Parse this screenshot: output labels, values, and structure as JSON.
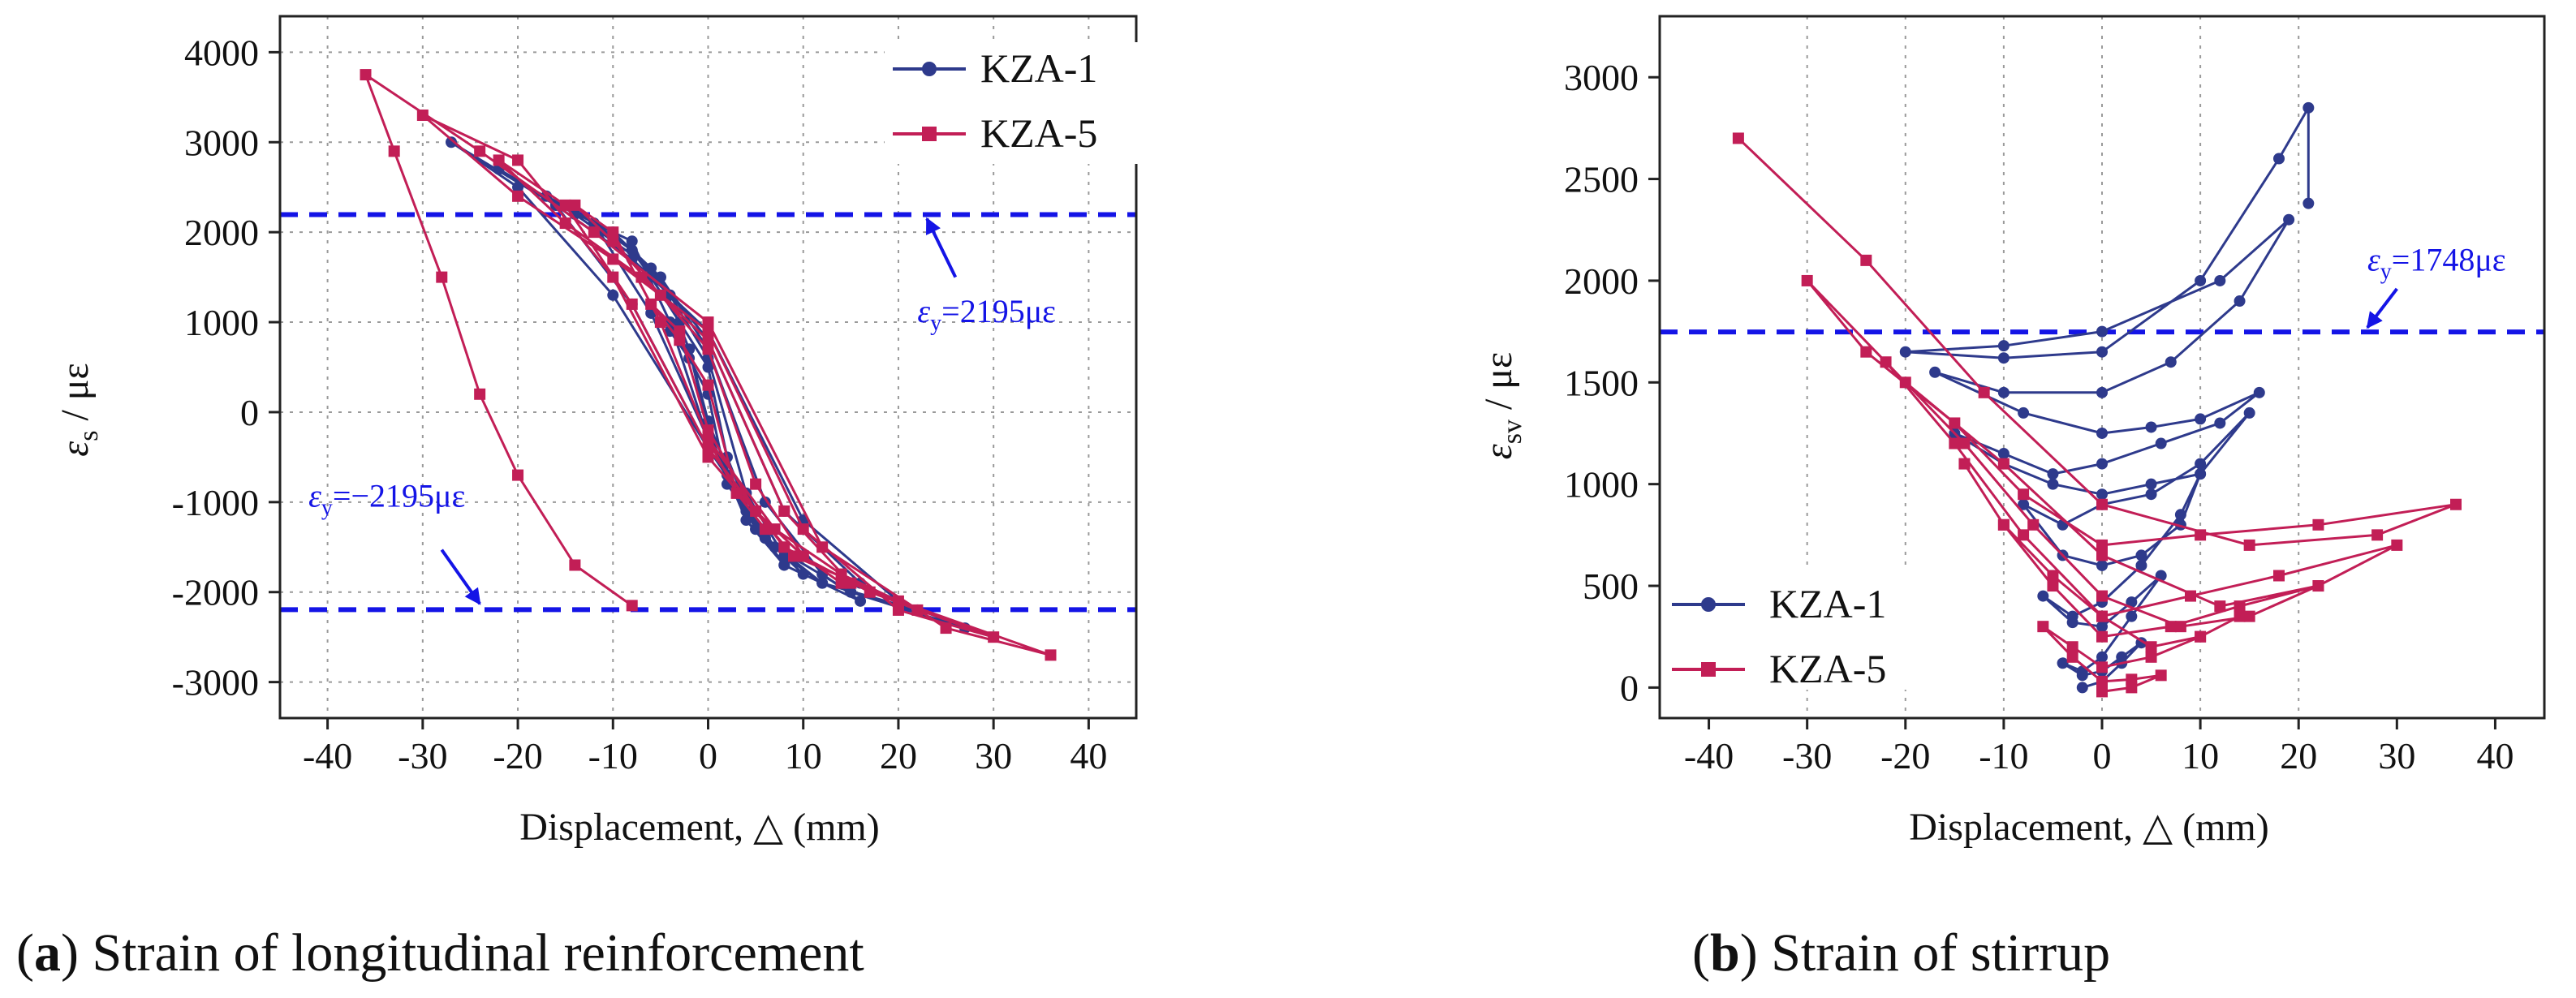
{
  "colors": {
    "kza1": "#2e3a8c",
    "kza5": "#c21e56",
    "ref": "#1414e6",
    "grid": "#9a9a9a"
  },
  "chart_data": [
    {
      "id": "a",
      "type": "line",
      "caption": {
        "letter": "a",
        "text": "Strain of longitudinal reinforcement"
      },
      "xlabel": "Displacement, △ (mm)",
      "ylabel_main": "ε",
      "ylabel_sub": "s",
      "ylabel_unit": " / με",
      "xlim": [
        -45,
        45
      ],
      "ylim": [
        -3400,
        4400
      ],
      "xticks": [
        -40,
        -30,
        -20,
        -10,
        0,
        10,
        20,
        30,
        40
      ],
      "yticks": [
        -3000,
        -2000,
        -1000,
        0,
        1000,
        2000,
        3000,
        4000
      ],
      "gridlines_x": [
        -40,
        -30,
        -20,
        -10,
        0,
        10,
        20,
        30,
        40
      ],
      "gridlines_y": [
        -3000,
        -2000,
        -1000,
        0,
        1000,
        2000,
        3000,
        4000
      ],
      "legend": {
        "position": "top-right",
        "entries": [
          "KZA-1",
          "KZA-5"
        ]
      },
      "ref_lines": [
        {
          "y": 2195,
          "text_main": "ε",
          "text_sub": "y",
          "text_rest": "=2195με",
          "label_at": [
            22,
            1000
          ],
          "arrow_from": [
            26,
            1500
          ],
          "arrow_to": [
            23,
            2150
          ]
        },
        {
          "y": -2195,
          "text_main": "ε",
          "text_sub": "y",
          "text_rest": "=−2195με",
          "label_at": [
            -42,
            -1050
          ],
          "arrow_from": [
            -28,
            -1530
          ],
          "arrow_to": [
            -24,
            -2130
          ]
        }
      ],
      "series": [
        {
          "name": "KZA-1",
          "marker": "circle",
          "x": [
            0,
            2,
            4,
            2,
            0,
            -2,
            -4,
            -2,
            0,
            3,
            6,
            8,
            5,
            2,
            0,
            -3,
            -6,
            -8,
            -5,
            -2,
            0,
            4,
            8,
            12,
            8,
            4,
            0,
            -4,
            -8,
            -12,
            -8,
            -4,
            0,
            5,
            10,
            16,
            12,
            6,
            0,
            -5,
            -10,
            -17,
            -12,
            -6,
            0,
            6,
            12,
            22,
            16,
            8,
            0,
            -6,
            -14,
            -22,
            -16,
            -8,
            0,
            7,
            15,
            27,
            20,
            10,
            0,
            -8,
            -16,
            -27,
            -20,
            -10,
            0
          ],
          "y": [
            -200,
            -700,
            -1100,
            -800,
            200,
            600,
            900,
            700,
            -100,
            -900,
            -1400,
            -1700,
            -1300,
            -500,
            500,
            1000,
            1500,
            1800,
            1500,
            700,
            -200,
            -1200,
            -1700,
            -1900,
            -1600,
            -900,
            600,
            1300,
            1800,
            2100,
            1900,
            1000,
            -300,
            -1300,
            -1800,
            -2100,
            -1800,
            -1000,
            700,
            1500,
            2000,
            2400,
            2100,
            1100,
            -300,
            -1400,
            -1900,
            -2200,
            -1900,
            -1100,
            800,
            1600,
            2200,
            2700,
            2300,
            1200,
            -400,
            -1500,
            -2000,
            -2400,
            -2100,
            -1200,
            900,
            1700,
            2300,
            3000,
            2500,
            1300,
            -400
          ]
        },
        {
          "name": "KZA-5",
          "marker": "square",
          "x": [
            0,
            3,
            6,
            3,
            0,
            -3,
            -6,
            -3,
            0,
            5,
            10,
            14,
            10,
            5,
            0,
            -5,
            -10,
            -14,
            -10,
            -5,
            0,
            7,
            14,
            22,
            15,
            8,
            0,
            -7,
            -15,
            -22,
            -15,
            -8,
            0,
            8,
            17,
            30,
            20,
            10,
            0,
            -10,
            -20,
            -30,
            -20,
            -10,
            0,
            9,
            20,
            36,
            25,
            12,
            0,
            -12,
            -24,
            -36,
            -33,
            -28,
            -24,
            -20,
            -14,
            -8
          ],
          "y": [
            -300,
            -900,
            -1300,
            -900,
            300,
            800,
            1200,
            900,
            -200,
            -1100,
            -1600,
            -1900,
            -1600,
            -800,
            700,
            1300,
            1900,
            2300,
            2000,
            1000,
            -300,
            -1300,
            -1800,
            -2200,
            -1900,
            -1100,
            800,
            1500,
            2100,
            2800,
            2300,
            1200,
            -400,
            -1500,
            -2000,
            -2500,
            -2200,
            -1300,
            900,
            1700,
            2400,
            3300,
            2800,
            1500,
            -500,
            -1600,
            -2100,
            -2700,
            -2400,
            -1500,
            1000,
            2000,
            2900,
            3750,
            2900,
            1500,
            200,
            -700,
            -1700,
            -2150
          ]
        }
      ]
    },
    {
      "id": "b",
      "type": "line",
      "caption": {
        "letter": "b",
        "text": "Strain of stirrup"
      },
      "xlabel": "Displacement, △ (mm)",
      "ylabel_main": "ε",
      "ylabel_sub": "sv",
      "ylabel_unit": " / με",
      "xlim": [
        -45,
        45
      ],
      "ylim": [
        -150,
        3300
      ],
      "xticks": [
        -40,
        -30,
        -20,
        -10,
        0,
        10,
        20,
        30,
        40
      ],
      "yticks": [
        0,
        500,
        1000,
        1500,
        2000,
        2500,
        3000
      ],
      "gridlines_x": [
        -30,
        -20,
        -10,
        0,
        10,
        20
      ],
      "gridlines_y": [],
      "legend": {
        "position": "bottom-left",
        "entries": [
          "KZA-1",
          "KZA-5"
        ]
      },
      "ref_lines": [
        {
          "y": 1748,
          "text_main": "ε",
          "text_sub": "y",
          "text_rest": "=1748με",
          "label_at": [
            27,
            2050
          ],
          "arrow_from": [
            30,
            1960
          ],
          "arrow_to": [
            27,
            1770
          ]
        }
      ],
      "series": [
        {
          "name": "KZA-1",
          "marker": "circle",
          "x": [
            -2,
            0,
            2,
            4,
            2,
            0,
            -2,
            -4,
            -2,
            0,
            3,
            6,
            3,
            0,
            -3,
            -6,
            -3,
            0,
            4,
            8,
            10,
            8,
            4,
            0,
            -4,
            -8,
            -4,
            0,
            5,
            10,
            15,
            10,
            5,
            0,
            -5,
            -10,
            -15,
            -10,
            -5,
            0,
            6,
            12,
            16,
            10,
            5,
            0,
            -8,
            -17,
            -10,
            0,
            7,
            14,
            19,
            12,
            0,
            -10,
            -20,
            -10,
            0,
            10,
            18,
            21,
            21
          ],
          "y": [
            0,
            30,
            120,
            220,
            150,
            80,
            60,
            120,
            80,
            150,
            350,
            550,
            420,
            300,
            320,
            450,
            350,
            420,
            600,
            850,
            1050,
            800,
            650,
            600,
            650,
            900,
            800,
            900,
            950,
            1100,
            1350,
            1050,
            1000,
            950,
            1000,
            1100,
            1250,
            1150,
            1050,
            1100,
            1200,
            1300,
            1450,
            1320,
            1280,
            1250,
            1350,
            1550,
            1450,
            1450,
            1600,
            1900,
            2300,
            2000,
            1750,
            1680,
            1650,
            1620,
            1650,
            2000,
            2600,
            2850,
            2380
          ]
        },
        {
          "name": "KZA-5",
          "marker": "square",
          "x": [
            0,
            3,
            6,
            3,
            0,
            -3,
            -6,
            -3,
            0,
            5,
            10,
            14,
            10,
            5,
            0,
            -5,
            -10,
            -14,
            -10,
            -5,
            0,
            7,
            14,
            22,
            15,
            8,
            0,
            -7,
            -14,
            -22,
            -15,
            -8,
            0,
            9,
            18,
            30,
            22,
            12,
            0,
            -10,
            -20,
            -30,
            -24,
            -15,
            -8,
            0,
            10,
            22,
            36,
            28,
            15,
            0,
            -12,
            -24,
            -37
          ],
          "y": [
            -20,
            0,
            60,
            40,
            30,
            150,
            300,
            200,
            100,
            150,
            250,
            350,
            250,
            200,
            350,
            550,
            800,
            1100,
            800,
            500,
            250,
            300,
            400,
            500,
            350,
            300,
            450,
            800,
            1200,
            1600,
            1200,
            750,
            350,
            450,
            550,
            700,
            500,
            400,
            650,
            1100,
            1500,
            2000,
            1650,
            1300,
            950,
            700,
            750,
            800,
            900,
            750,
            700,
            900,
            1450,
            2100,
            2700
          ]
        }
      ]
    }
  ]
}
